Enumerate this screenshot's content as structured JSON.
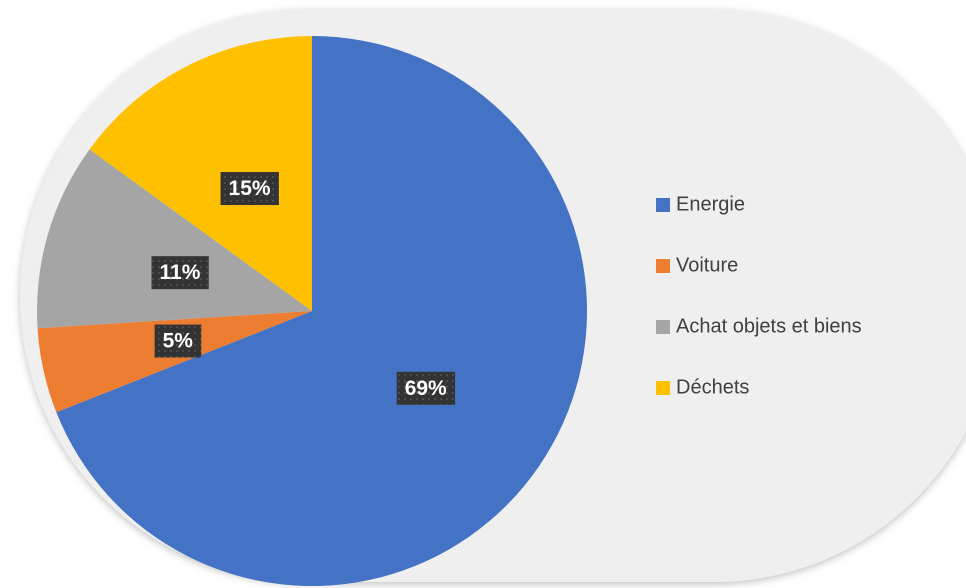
{
  "chart_data": {
    "type": "pie",
    "categories": [
      "Energie",
      "Voiture",
      "Achat objets et biens",
      "Déchets"
    ],
    "values": [
      69,
      5,
      11,
      15
    ],
    "value_labels": [
      "69%",
      "5%",
      "11%",
      "15%"
    ],
    "colors": [
      "#4472c4",
      "#ed7d31",
      "#a5a5a5",
      "#ffc000"
    ],
    "legend": "right"
  }
}
